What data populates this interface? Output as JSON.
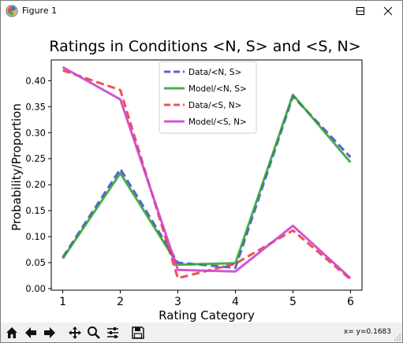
{
  "window": {
    "title": "Figure 1"
  },
  "toolbar": {
    "buttons": [
      "home-icon",
      "back-icon",
      "forward-icon",
      "pan-icon",
      "zoom-icon",
      "configure-icon",
      "save-icon"
    ],
    "coords_label": "x= y=0.1683"
  },
  "chart_data": {
    "type": "line",
    "title": "Ratings in Conditions <N, S> and <S, N>",
    "xlabel": "Rating Category",
    "ylabel": "Probability/Proportion",
    "x": [
      1,
      2,
      3,
      4,
      5,
      6
    ],
    "xlim": [
      0.8,
      6.2
    ],
    "ylim": [
      -0.003,
      0.44
    ],
    "xticks": [
      "1",
      "2",
      "3",
      "4",
      "5",
      "6"
    ],
    "yticks": [
      "0.00",
      "0.05",
      "0.10",
      "0.15",
      "0.20",
      "0.25",
      "0.30",
      "0.35",
      "0.40"
    ],
    "grid": false,
    "legend_position": "upper center",
    "series": [
      {
        "name": "Data/<N, S>",
        "values": [
          0.06,
          0.23,
          0.05,
          0.04,
          0.37,
          0.253
        ],
        "color": "#3f3fe0",
        "style": "dashed",
        "opacity": 0.85
      },
      {
        "name": "Model/<N, S>",
        "values": [
          0.058,
          0.222,
          0.046,
          0.049,
          0.373,
          0.243
        ],
        "color": "#2ca02c",
        "style": "solid",
        "opacity": 0.85
      },
      {
        "name": "Data/<S, N>",
        "values": [
          0.42,
          0.382,
          0.02,
          0.048,
          0.112,
          0.018
        ],
        "color": "#ee3333",
        "style": "dashed",
        "opacity": 0.85
      },
      {
        "name": "Model/<S, N>",
        "values": [
          0.426,
          0.364,
          0.036,
          0.033,
          0.121,
          0.02
        ],
        "color": "#cc44cc",
        "style": "solid",
        "opacity": 0.9
      }
    ]
  }
}
